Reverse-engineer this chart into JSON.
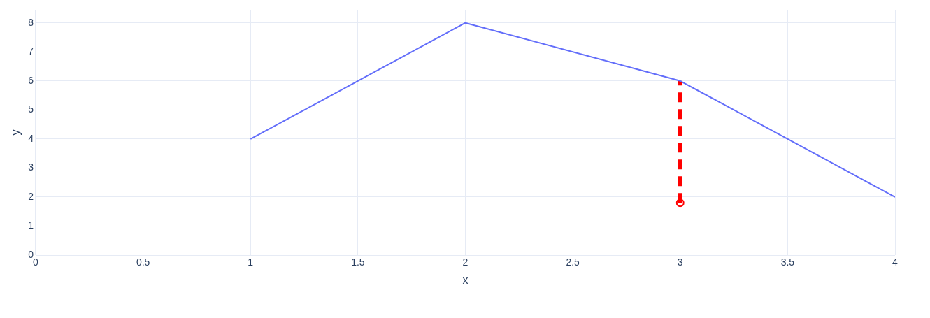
{
  "chart_data": {
    "type": "line",
    "xlabel": "x",
    "ylabel": "y",
    "xlim": [
      0,
      4
    ],
    "xticks": [
      0,
      0.5,
      1,
      1.5,
      2,
      2.5,
      3,
      3.5,
      4
    ],
    "ylim": [
      0,
      8.45
    ],
    "yticks": [
      0,
      1,
      2,
      3,
      4,
      5,
      6,
      7,
      8
    ],
    "grid": true,
    "legend": false,
    "series": [
      {
        "color": "#636efa",
        "x": [
          1,
          2,
          3,
          4
        ],
        "values": [
          4,
          8,
          6,
          2
        ]
      },
      {
        "color": "#ff0000",
        "x": [
          3,
          3
        ],
        "values": [
          1.8,
          6
        ],
        "line_style": "dashed"
      },
      {
        "type": "scatter",
        "color": "#ff0000",
        "x": [
          3
        ],
        "values": [
          1.8
        ],
        "marker": "circle"
      }
    ]
  }
}
